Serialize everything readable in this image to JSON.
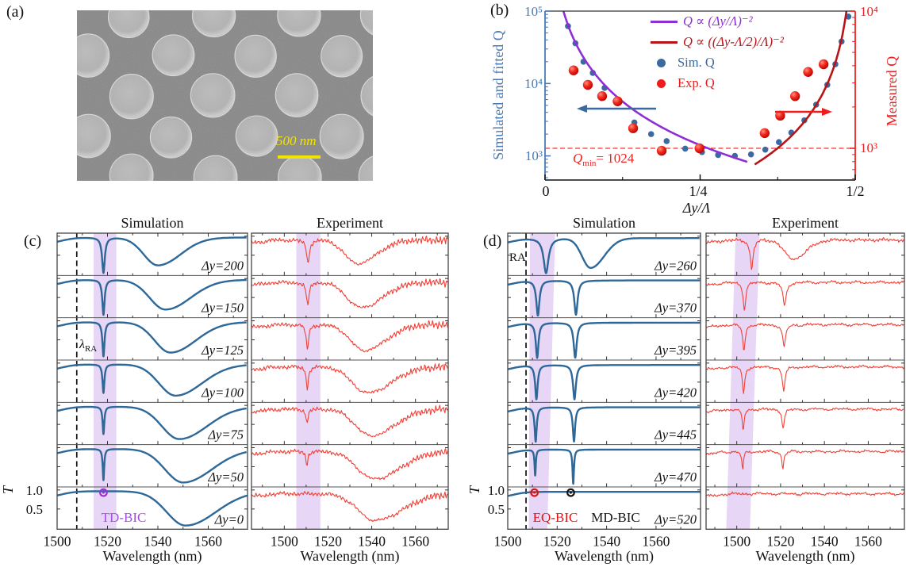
{
  "figure": {
    "panel_a": {
      "label": "(a)",
      "scale_text": "500 nm",
      "scale_color": "#f2e400"
    },
    "panel_b": {
      "label": "(b)",
      "ylabel_left": "Simulated and fitted Q",
      "ylabel_right": "Measured Q",
      "xlabel": "Δy/Λ",
      "yticks_left": [
        "10⁵",
        "10⁴",
        "10³"
      ],
      "yticks_right": [
        "10⁴",
        "10³"
      ],
      "xticks": [
        "0",
        "1/4",
        "1/2"
      ],
      "qmin_q": "Q",
      "qmin_sub": "min",
      "qmin_eq": "= 1024"
    },
    "panel_c": {
      "label": "(c)",
      "title_sim": "Simulation",
      "title_exp": "Experiment",
      "ylabel": "T",
      "ytick_1": "1.0",
      "ytick_2": "0.5",
      "xlabel_sim": "Wavelength (nm)",
      "xlabel_exp": "Wavelength (nm)",
      "ra_main": "λ",
      "ra_sub": "RA",
      "bic_label": "TD-BIC"
    },
    "panel_d": {
      "label": "(d)",
      "title_sim": "Simulation",
      "title_exp": "Experiment",
      "ylabel": "T",
      "ytick_1": "1.0",
      "ytick_2": "0.5",
      "xlabel_sim": "Wavelength (nm)",
      "xlabel_exp": "Wavelength (nm)",
      "ra_label": "RA",
      "bic1": "EQ-BIC",
      "bic2": "MD-BIC"
    }
  },
  "chart_data": {
    "panel_b": {
      "type": "scatter",
      "xlabel": "Δy/Λ",
      "ylabel_left": "Simulated and fitted Q",
      "ylabel_right": "Measured Q",
      "xlim": [
        0,
        0.5
      ],
      "ylim_left": [
        1000,
        100000
      ],
      "ylim_right": [
        1000,
        10000
      ],
      "log_scale": true,
      "xtick_values": [
        0,
        0.25,
        0.5
      ],
      "legend": [
        {
          "label": "Q ∝ (Δy/Λ)⁻²",
          "type": "line",
          "color": "#8d2fd4",
          "italic": true
        },
        {
          "label": "Q ∝ ((Δy-Λ/2)/Λ)⁻²",
          "type": "line",
          "color": "#b81418",
          "italic": true
        },
        {
          "label": "Sim. Q",
          "type": "dot",
          "color": "#3a6aa0",
          "italic": false
        },
        {
          "label": "Exp. Q",
          "type": "dot",
          "color": "#ee1c1c",
          "italic": false
        }
      ],
      "qmin_line": {
        "value": 1024,
        "axis": "right",
        "color": "#ff2a2a"
      },
      "series": [
        {
          "name": "Sim. Q",
          "axis": "left",
          "color": "#3a6aa0",
          "points": [
            [
              0.037,
              62000
            ],
            [
              0.049,
              36000
            ],
            [
              0.062,
              20000
            ],
            [
              0.077,
              14000
            ],
            [
              0.096,
              8700
            ],
            [
              0.117,
              5800
            ],
            [
              0.144,
              2900
            ],
            [
              0.171,
              2000
            ],
            [
              0.196,
              1600
            ],
            [
              0.226,
              1260
            ],
            [
              0.253,
              1130
            ],
            [
              0.279,
              1030
            ],
            [
              0.306,
              1000
            ],
            [
              0.332,
              1050
            ],
            [
              0.355,
              1220
            ],
            [
              0.377,
              1550
            ],
            [
              0.397,
              2100
            ],
            [
              0.418,
              3100
            ],
            [
              0.437,
              5100
            ],
            [
              0.455,
              9600
            ],
            [
              0.468,
              18500
            ],
            [
              0.478,
              38000
            ],
            [
              0.489,
              84000
            ]
          ]
        },
        {
          "name": "Exp. Q",
          "axis": "right",
          "color": "#ee1c1c",
          "points": [
            [
              0.046,
              3700
            ],
            [
              0.069,
              2900
            ],
            [
              0.092,
              2400
            ],
            [
              0.117,
              2200
            ],
            [
              0.142,
              1400
            ],
            [
              0.188,
              960
            ],
            [
              0.249,
              1000
            ],
            [
              0.354,
              1290
            ],
            [
              0.379,
              1730
            ],
            [
              0.403,
              2400
            ],
            [
              0.424,
              3600
            ],
            [
              0.449,
              4100
            ]
          ]
        }
      ],
      "fit_left": {
        "A": 88,
        "x_start": 0.0297,
        "x_end": 0.326,
        "color": "#8d2fd4"
      },
      "fit_right": {
        "A": 20,
        "x_start": 0.338,
        "x_end": 0.4858,
        "color": "#b81418"
      }
    },
    "panel_c": {
      "type": "line",
      "sim_range": [
        1500,
        1575.6
      ],
      "exp_range": [
        1485,
        1575
      ],
      "xticks": [
        1500,
        1520,
        1540,
        1560
      ],
      "band_sim": [
        1514.5,
        1523.5
      ],
      "band_exp": [
        1505.5,
        1516.5
      ],
      "ra_lambda": 1507.8,
      "sim_base": 0.965,
      "exp_base": 0.9,
      "rows": [
        {
          "dy": "Δy=200",
          "sim": {
            "broad": [
              1540,
              9,
              0.73
            ],
            "narrows": [
              [
                1518.4,
                1.3,
                0.93
              ]
            ]
          },
          "exp": {
            "broad": [
              1533.3,
              9,
              0.62
            ],
            "narrows": [
              [
                1510.8,
                1.6,
                0.6
              ]
            ]
          }
        },
        {
          "dy": "Δy=150",
          "sim": {
            "broad": [
              1543,
              10,
              0.78
            ],
            "narrows": [
              [
                1518.4,
                1.1,
                0.92
              ]
            ]
          },
          "exp": {
            "broad": [
              1535,
              10,
              0.66
            ],
            "narrows": [
              [
                1510.7,
                1.5,
                0.62
              ]
            ]
          }
        },
        {
          "dy": "Δy=125",
          "sim": {
            "broad": [
              1545,
              10,
              0.8
            ],
            "narrows": [
              [
                1518.4,
                1.0,
                0.9
              ]
            ]
          },
          "exp": {
            "broad": [
              1536.5,
              10,
              0.68
            ],
            "narrows": [
              [
                1510.6,
                1.4,
                0.65
              ]
            ]
          }
        },
        {
          "dy": "Δy=100",
          "sim": {
            "broad": [
              1547,
              10.5,
              0.82
            ],
            "narrows": [
              [
                1518.4,
                0.9,
                0.75
              ]
            ]
          },
          "exp": {
            "broad": [
              1538,
              11,
              0.68
            ],
            "narrows": [
              [
                1510.5,
                1.3,
                0.55
              ]
            ]
          }
        },
        {
          "dy": "Δy=75",
          "sim": {
            "broad": [
              1548.5,
              11,
              0.85
            ],
            "narrows": [
              [
                1518.4,
                0.8,
                0.72
              ]
            ]
          },
          "exp": {
            "broad": [
              1539.5,
              11,
              0.7
            ],
            "narrows": [
              [
                1510.4,
                1.2,
                0.38
              ]
            ]
          }
        },
        {
          "dy": "Δy=50",
          "sim": {
            "broad": [
              1550,
              11.5,
              0.88
            ],
            "narrows": [
              [
                1518.4,
                0.7,
                0.82
              ]
            ]
          },
          "exp": {
            "broad": [
              1541,
              12,
              0.72
            ],
            "narrows": [
              [
                1510.3,
                1.1,
                0.35
              ]
            ]
          }
        },
        {
          "dy": "Δy=0",
          "sim": {
            "broad": [
              1551,
              12,
              0.9
            ],
            "narrows": []
          },
          "exp": {
            "broad": [
              1541.5,
              12.5,
              0.7
            ],
            "narrows": []
          }
        }
      ],
      "bic_markers": [
        {
          "lambda": 1518.4,
          "T": 0.93,
          "color": "#9b30d5"
        }
      ]
    },
    "panel_d": {
      "type": "line",
      "sim_range": [
        1500,
        1578
      ],
      "exp_range": [
        1486,
        1576.5
      ],
      "xticks": [
        1500,
        1520,
        1540,
        1560
      ],
      "band_sim_top": [
        1509,
        1519.2
      ],
      "band_sim_bottom": [
        1508.5,
        1516
      ],
      "band_exp_top": [
        1499.5,
        1510.4
      ],
      "band_exp_bottom": [
        1495.2,
        1506
      ],
      "ra_lambda": 1507.4,
      "sim_base": 0.95,
      "exp_base": 0.9,
      "rows": [
        {
          "dy": "Δy=260",
          "sim": {
            "broad": [
              1533.5,
              5.5,
              0.78
            ],
            "narrows": [
              [
                1515.5,
                2.4,
                0.92
              ]
            ]
          },
          "exp": {
            "broad": [
              1525.5,
              6,
              0.5
            ],
            "narrows": [
              [
                1506.8,
                1.6,
                0.75
              ]
            ]
          }
        },
        {
          "dy": "Δy=370",
          "sim": {
            "broad": null,
            "narrows": [
              [
                1512.2,
                1.5,
                0.92
              ],
              [
                1527.6,
                1.6,
                0.9
              ]
            ]
          },
          "exp": {
            "broad": null,
            "narrows": [
              [
                1503.5,
                1.4,
                0.72
              ],
              [
                1521.8,
                1.8,
                0.62
              ]
            ]
          }
        },
        {
          "dy": "Δy=395",
          "sim": {
            "broad": null,
            "narrows": [
              [
                1511.9,
                1.3,
                0.92
              ],
              [
                1527.3,
                1.5,
                0.92
              ]
            ]
          },
          "exp": {
            "broad": null,
            "narrows": [
              [
                1503.3,
                1.3,
                0.7
              ],
              [
                1521.6,
                1.6,
                0.6
              ]
            ]
          }
        },
        {
          "dy": "Δy=420",
          "sim": {
            "broad": null,
            "narrows": [
              [
                1511.6,
                1.2,
                0.9
              ],
              [
                1527.0,
                1.4,
                0.9
              ]
            ]
          },
          "exp": {
            "broad": null,
            "narrows": [
              [
                1503.1,
                1.2,
                0.72
              ],
              [
                1521.4,
                1.5,
                0.62
              ]
            ]
          }
        },
        {
          "dy": "Δy=445",
          "sim": {
            "broad": null,
            "narrows": [
              [
                1511.3,
                1.0,
                0.9
              ],
              [
                1526.8,
                1.1,
                0.9
              ]
            ]
          },
          "exp": {
            "broad": null,
            "narrows": [
              [
                1502.9,
                1.1,
                0.55
              ],
              [
                1521.2,
                1.3,
                0.5
              ]
            ]
          }
        },
        {
          "dy": "Δy=470",
          "sim": {
            "broad": null,
            "narrows": [
              [
                1511.1,
                0.6,
                0.68
              ],
              [
                1526.5,
                0.7,
                0.9
              ]
            ]
          },
          "exp": {
            "broad": null,
            "narrows": [
              [
                1502.7,
                0.9,
                0.5
              ],
              [
                1521.0,
                1.1,
                0.45
              ]
            ]
          }
        },
        {
          "dy": "Δy=520",
          "sim": {
            "broad": null,
            "narrows": []
          },
          "exp": {
            "broad": null,
            "narrows": []
          }
        }
      ],
      "bic_markers": [
        {
          "lambda": 1510.8,
          "T": 0.93,
          "color": "#e01414"
        },
        {
          "lambda": 1525.5,
          "T": 0.93,
          "color": "#151515"
        }
      ]
    }
  },
  "colors": {
    "sim_curve": "#2d6898",
    "exp_curve": "#f04238",
    "band": "#e4d2f5",
    "axis_blue": "#4a7ab5",
    "axis_red": "#ee2222",
    "purple": "#8d2fd4",
    "dark_red": "#b81418",
    "bic_purple": "#a44fe0"
  }
}
